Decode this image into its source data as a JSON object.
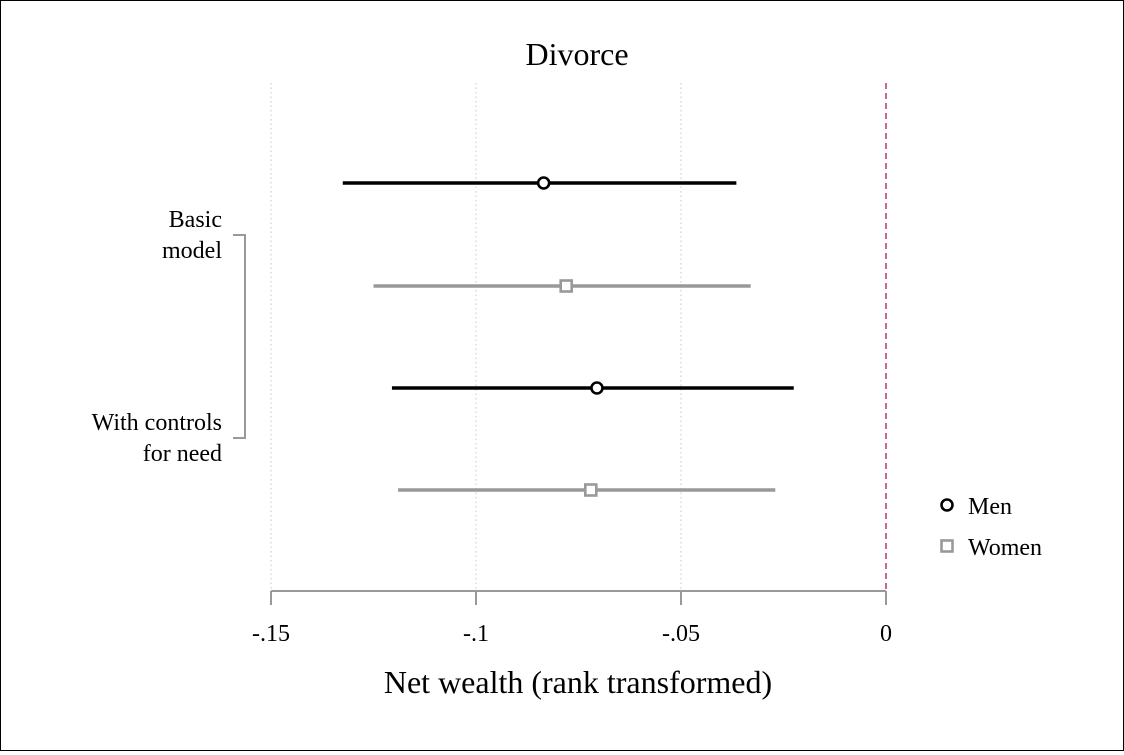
{
  "chart_data": {
    "type": "scatter",
    "subtype": "coefficient-plot",
    "title": "Divorce",
    "xlabel": "Net wealth (rank transformed)",
    "xlim": [
      -0.15,
      0
    ],
    "xticks": [
      -0.15,
      -0.1,
      -0.05,
      0
    ],
    "xtick_labels": [
      "-.15",
      "-.1",
      "-.05",
      "0"
    ],
    "reference_line": 0,
    "grid": true,
    "legend_position": "right",
    "groups": [
      {
        "label": "Basic model",
        "label_lines": [
          "Basic",
          "model"
        ]
      },
      {
        "label": "With controls for need",
        "label_lines": [
          "With controls",
          "for need"
        ]
      }
    ],
    "series": [
      {
        "name": "Men",
        "marker": "circle",
        "color": "#000000",
        "points": [
          {
            "group": "Basic model",
            "estimate": -0.0835,
            "ci": [
              -0.1325,
              -0.0365
            ]
          },
          {
            "group": "With controls for need",
            "estimate": -0.0705,
            "ci": [
              -0.1205,
              -0.0225
            ]
          }
        ]
      },
      {
        "name": "Women",
        "marker": "square",
        "color": "#999999",
        "points": [
          {
            "group": "Basic model",
            "estimate": -0.078,
            "ci": [
              -0.125,
              -0.033
            ]
          },
          {
            "group": "With controls for need",
            "estimate": -0.072,
            "ci": [
              -0.119,
              -0.027
            ]
          }
        ]
      }
    ]
  },
  "colors": {
    "men": "#000000",
    "women": "#999999",
    "reference_line": "#cc6699",
    "grid": "#c8c8c8",
    "axis": "#999999"
  }
}
